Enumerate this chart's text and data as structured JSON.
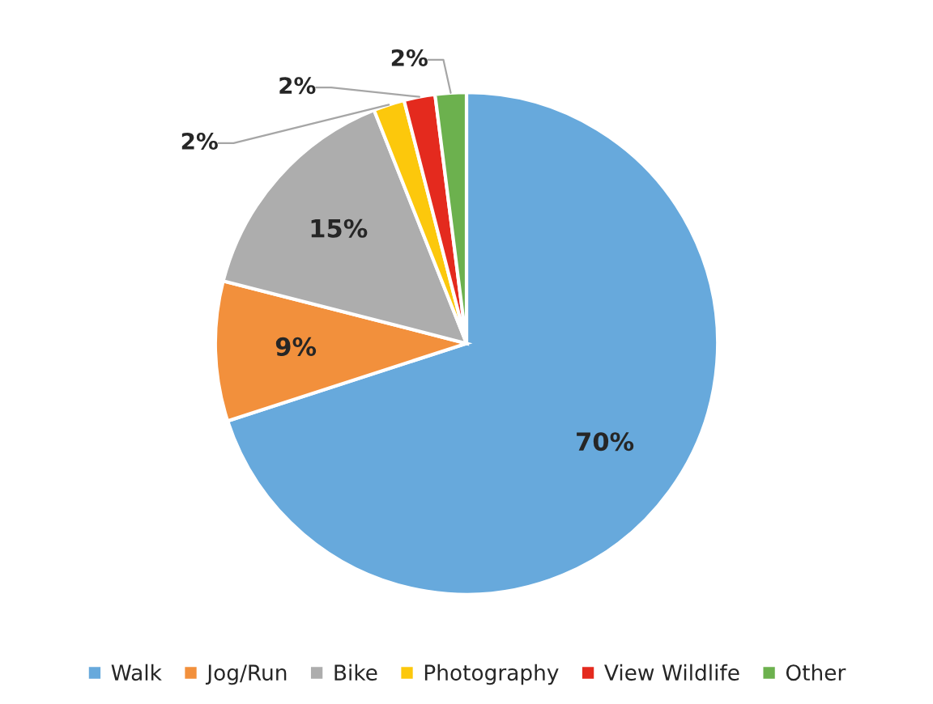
{
  "chart_data": {
    "type": "pie",
    "categories": [
      "Walk",
      "Jog/Run",
      "Bike",
      "Photography",
      "View Wildlife",
      "Other"
    ],
    "values": [
      70,
      9,
      15,
      2,
      2,
      2
    ],
    "colors": [
      "#67a9dc",
      "#f2903c",
      "#adadad",
      "#fcc80c",
      "#e42a1e",
      "#6cb14e"
    ],
    "value_labels": [
      "70%",
      "9%",
      "15%",
      "2%",
      "2%",
      "2%"
    ],
    "legend": "bottom"
  }
}
